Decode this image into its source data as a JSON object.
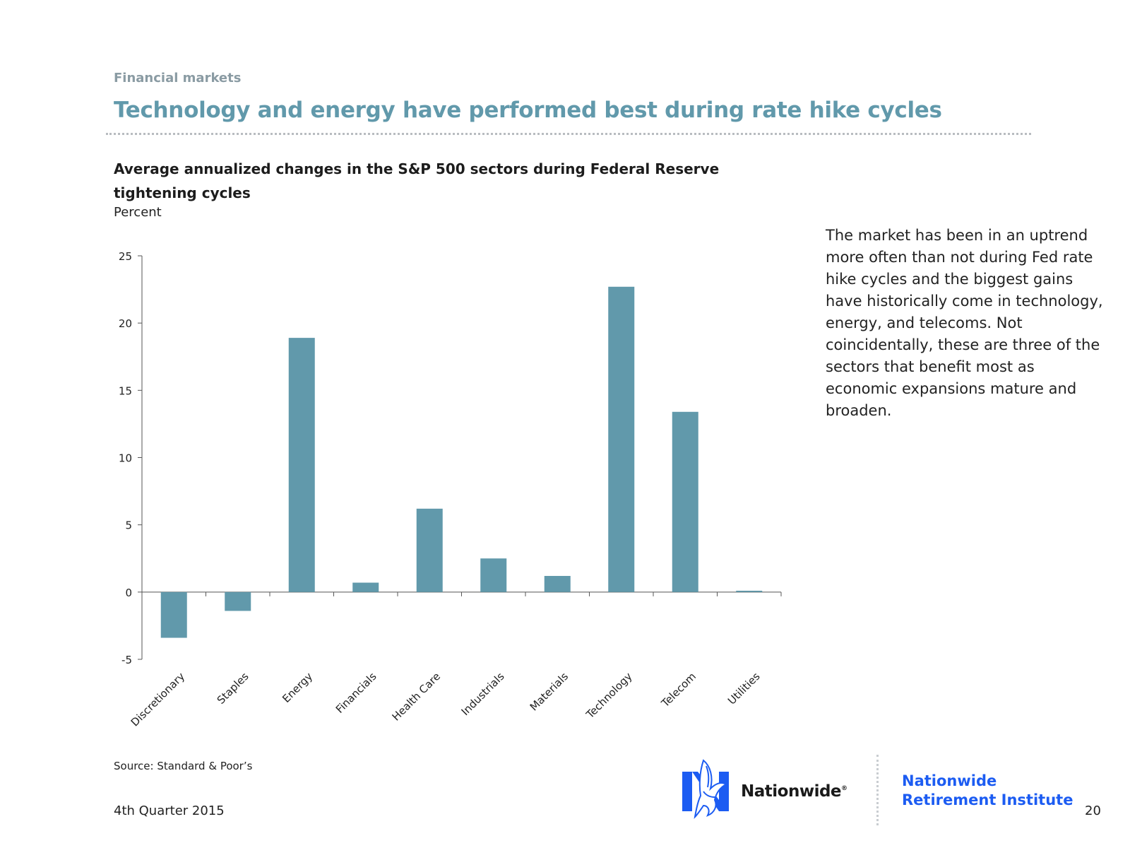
{
  "header": {
    "section_label": "Financial markets",
    "headline": "Technology and energy have performed best during rate hike cycles"
  },
  "chart_data": {
    "type": "bar",
    "title": "Average annualized changes in the S&P 500 sectors during Federal Reserve tightening cycles",
    "ylabel": "Percent",
    "xlabel": "",
    "categories": [
      "Discretionary",
      "Staples",
      "Energy",
      "Financials",
      "Health Care",
      "Industrials",
      "Materials",
      "Technology",
      "Telecom",
      "Utilities"
    ],
    "values": [
      -3.4,
      -1.4,
      18.9,
      0.7,
      6.2,
      2.5,
      1.2,
      22.7,
      13.4,
      0.1
    ],
    "ylim": [
      -5,
      25
    ],
    "yticks": [
      25,
      20,
      15,
      10,
      5,
      0,
      -5
    ],
    "grid": false,
    "bar_color": "#6199ab"
  },
  "commentary": "The market has been in an uptrend more often than not during Fed rate hike cycles and the biggest gains have historically come in technology, energy, and telecoms. Not coincidentally, these are three of the sectors that benefit most as economic expansions mature and broaden.",
  "footer": {
    "source": "Source: Standard & Poor’s",
    "quarter": "4th Quarter 2015",
    "page_number": "20",
    "brand_name": "Nationwide",
    "brand_mark": "®",
    "institute_line1": "Nationwide",
    "institute_line2": "Retirement Institute",
    "brand_color": "#1c5cf2"
  }
}
